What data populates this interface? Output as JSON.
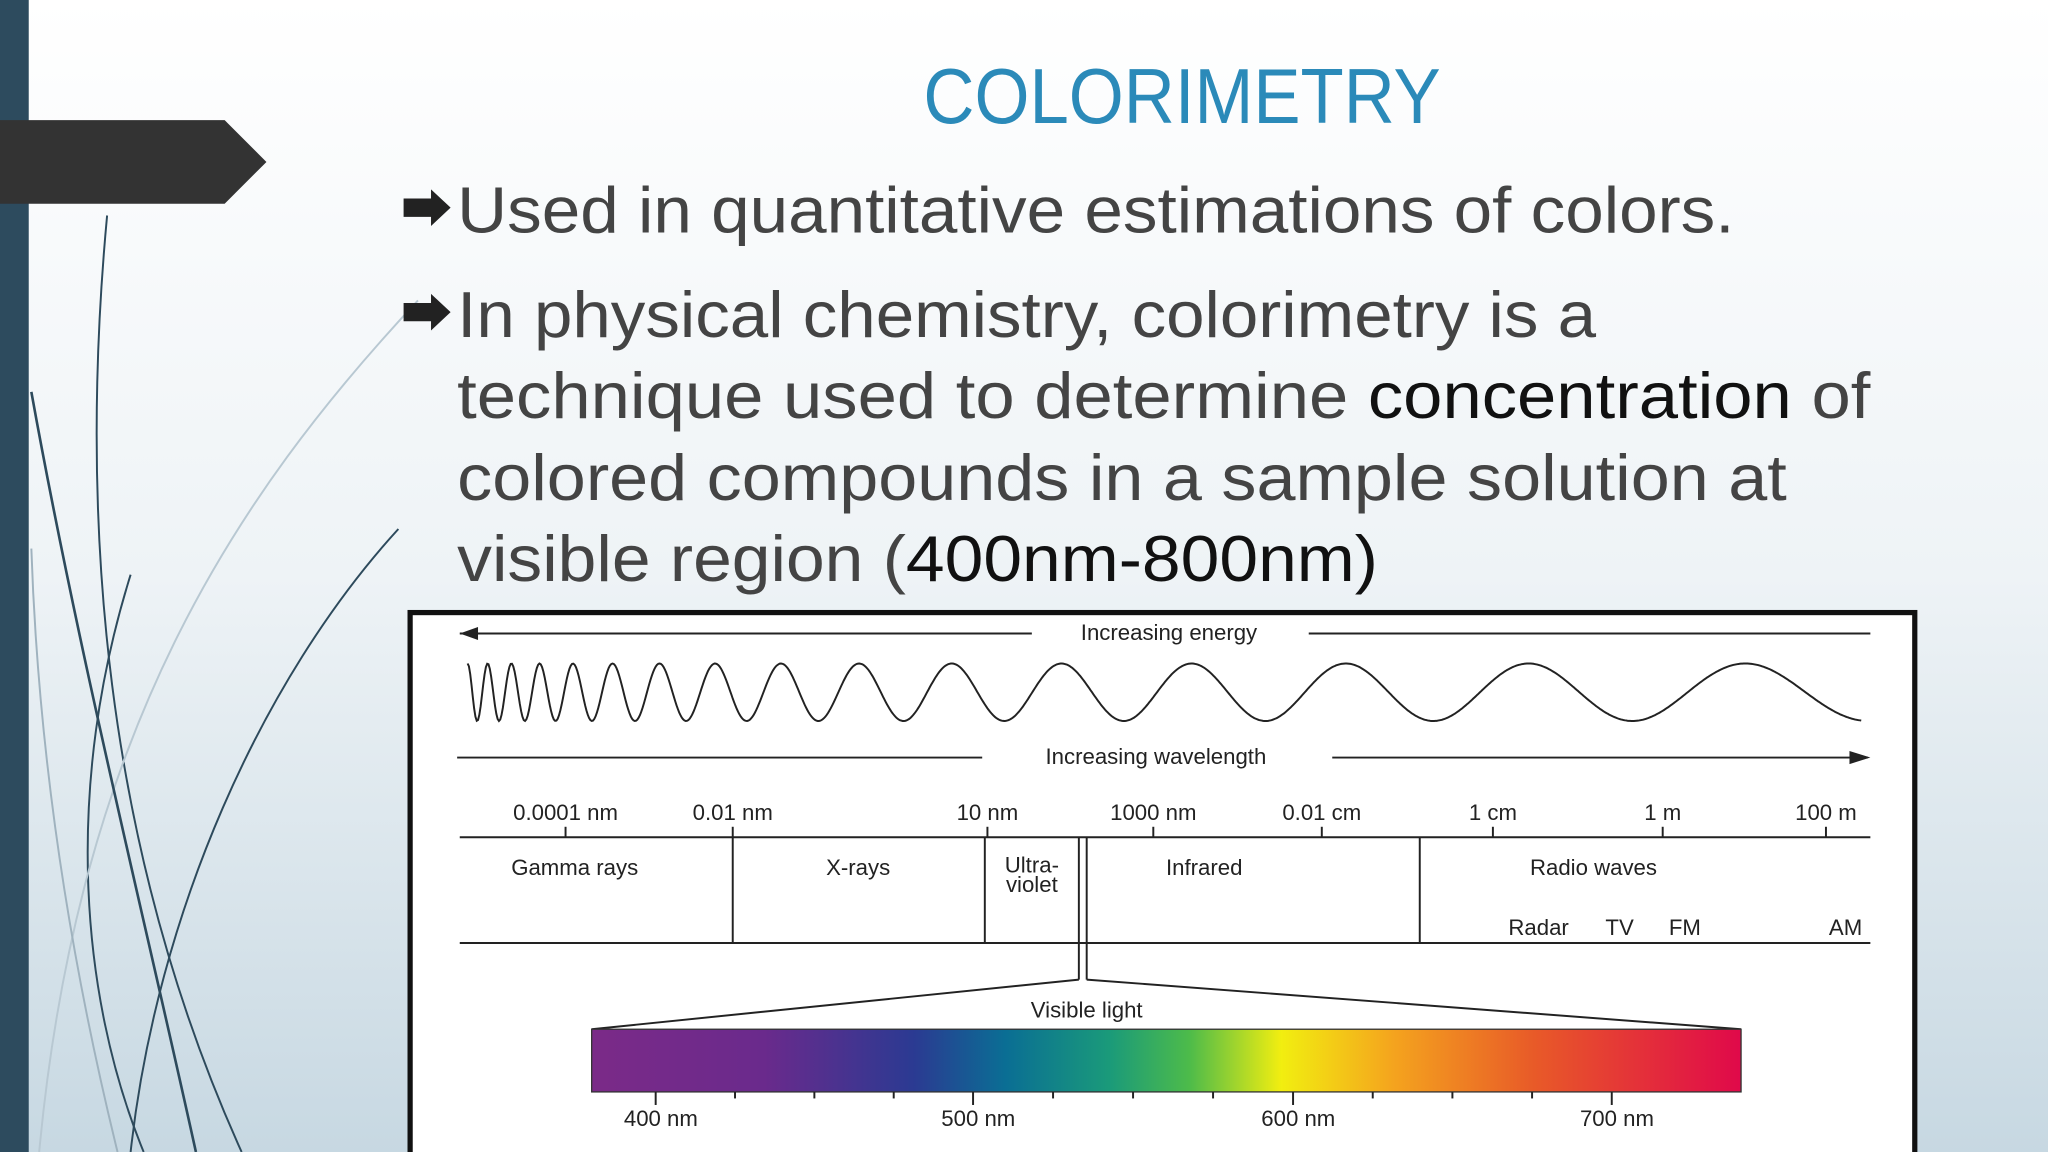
{
  "title": "COLORIMETRY",
  "bullets": [
    {
      "lines": [
        [
          {
            "text": "Used in quantitative estimations of colors.",
            "emphasis": false
          }
        ]
      ]
    },
    {
      "lines": [
        [
          {
            "text": "In physical chemistry, colorimetry is a",
            "emphasis": false
          }
        ],
        [
          {
            "text": "technique used to determine ",
            "emphasis": false
          },
          {
            "text": "concentration",
            "emphasis": true
          },
          {
            "text": " of",
            "emphasis": false
          }
        ],
        [
          {
            "text": "colored compounds in a sample solution at",
            "emphasis": false
          }
        ],
        [
          {
            "text": "visible region (",
            "emphasis": false
          },
          {
            "text": "400nm-800nm)",
            "emphasis": true
          }
        ]
      ]
    }
  ],
  "figure": {
    "energy_label": "Increasing energy",
    "wavelength_label": "Increasing wavelength",
    "scale_labels": [
      "0.0001 nm",
      "0.01 nm",
      "10 nm",
      "1000 nm",
      "0.01 cm",
      "1 cm",
      "1 m",
      "100 m"
    ],
    "regions": [
      "Gamma rays",
      "X-rays",
      "Ultra-",
      "violet",
      "Infrared",
      "Radio waves"
    ],
    "radio_bands": [
      "Radar",
      "TV",
      "FM",
      "AM"
    ],
    "visible_label": "Visible light",
    "visible_scale": [
      "400 nm",
      "500 nm",
      "600 nm",
      "700 nm"
    ]
  }
}
